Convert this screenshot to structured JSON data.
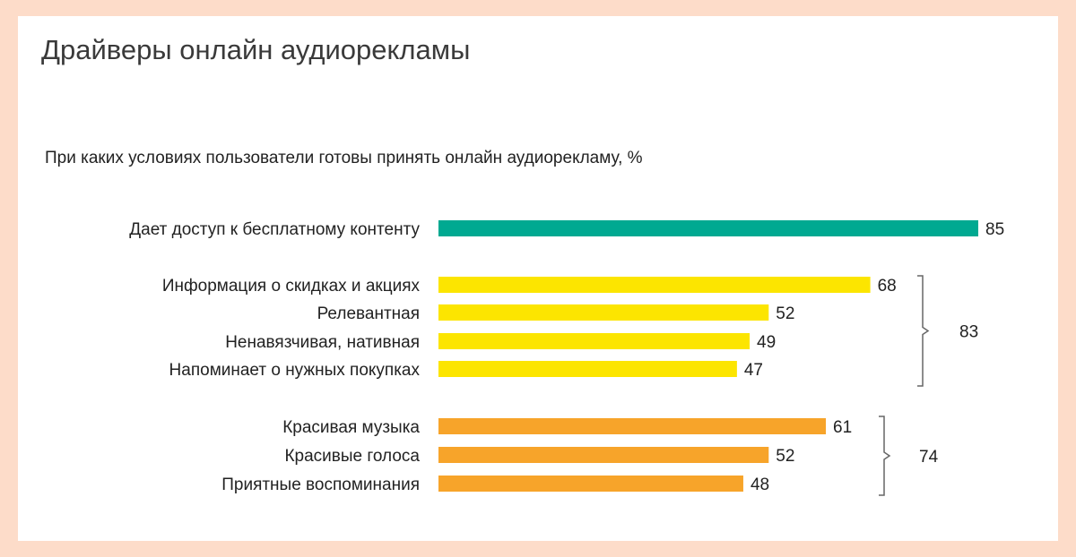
{
  "title": "Драйверы онлайн аудиорекламы",
  "subtitle": "При каких условиях пользователи готовы принять онлайн аудиорекламу, %",
  "colors": {
    "background": "#fddcc9",
    "card": "#ffffff",
    "teal": "#00a991",
    "yellow": "#fce500",
    "orange": "#f7a42a",
    "bracket": "#666666"
  },
  "chart_data": {
    "type": "bar",
    "orientation": "horizontal",
    "xlim": [
      0,
      85
    ],
    "grid": false,
    "legend": "none",
    "bars": [
      {
        "label": "Дает доступ к бесплатному контенту",
        "value": 85,
        "group": 0,
        "color": "teal"
      },
      {
        "label": "Информация о скидках и акциях",
        "value": 68,
        "group": 1,
        "color": "yellow"
      },
      {
        "label": "Релевантная",
        "value": 52,
        "group": 1,
        "color": "yellow"
      },
      {
        "label": "Ненавязчивая, нативная",
        "value": 49,
        "group": 1,
        "color": "yellow"
      },
      {
        "label": "Напоминает о нужных покупках",
        "value": 47,
        "group": 1,
        "color": "yellow"
      },
      {
        "label": "Красивая музыка",
        "value": 61,
        "group": 2,
        "color": "orange"
      },
      {
        "label": "Красивые голоса",
        "value": 52,
        "group": 2,
        "color": "orange"
      },
      {
        "label": "Приятные воспоминания",
        "value": 48,
        "group": 2,
        "color": "orange"
      }
    ],
    "group_totals": [
      {
        "group": 1,
        "value": 83
      },
      {
        "group": 2,
        "value": 74
      }
    ]
  }
}
